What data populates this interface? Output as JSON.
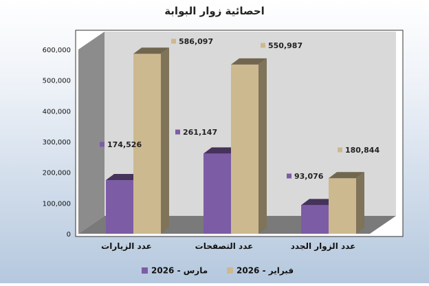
{
  "chart_data": {
    "type": "bar",
    "title": "احصائية زوار البوابة",
    "categories": [
      "عدد الزيارات",
      "عدد التصفحات",
      "عدد الزوار الجدد"
    ],
    "series": [
      {
        "name": "مارس - 2026",
        "values": [
          174526,
          261147,
          93076
        ],
        "color": "#7d5ca6",
        "labels": [
          "174,526",
          "261,147",
          "93,076"
        ]
      },
      {
        "name": "فبراير - 2026",
        "values": [
          586097,
          550987,
          180844
        ],
        "color": "#cdb98f",
        "labels": [
          "586,097",
          "550,987",
          "180,844"
        ]
      }
    ],
    "ylim": [
      0,
      600000
    ],
    "y_ticks": [
      "0",
      "100,000",
      "200,000",
      "300,000",
      "400,000",
      "500,000",
      "600,000"
    ],
    "xlabel": "",
    "ylabel": "",
    "legend": "bottom",
    "grid": false,
    "style": "3d-column"
  }
}
